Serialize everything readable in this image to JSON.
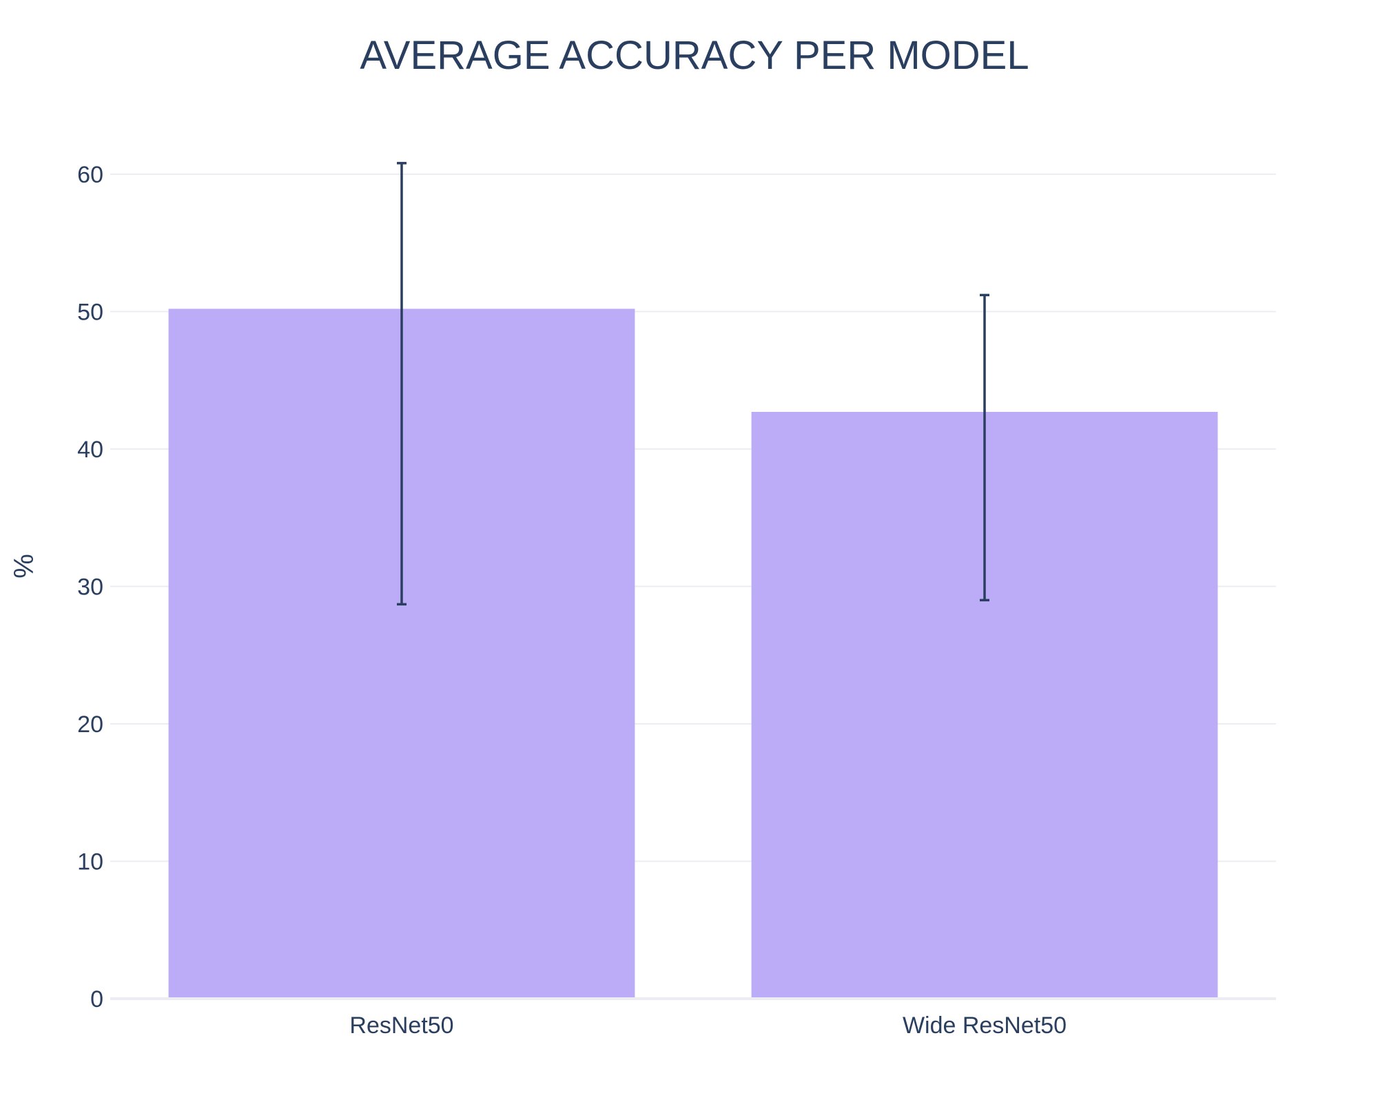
{
  "chart_data": {
    "type": "bar",
    "title": "AVERAGE ACCURACY PER MODEL",
    "xlabel": "",
    "ylabel": "%",
    "categories": [
      "ResNet50",
      "Wide ResNet50"
    ],
    "values": [
      50.2,
      42.7
    ],
    "error_upper": [
      60.8,
      51.2
    ],
    "error_lower": [
      28.7,
      29.0
    ],
    "ylim": [
      0,
      64
    ],
    "yticks": [
      0,
      10,
      20,
      30,
      40,
      50,
      60
    ],
    "grid": true,
    "legend": "none"
  },
  "colors": {
    "bar": "#bcacf8",
    "error_bar": "#2a3f5f",
    "text": "#2a3f5f",
    "grid": "#ebedf2"
  }
}
